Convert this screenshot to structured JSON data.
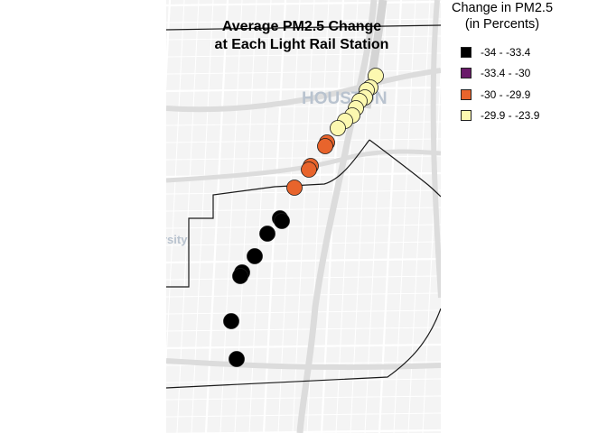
{
  "title_line1": "Average PM2.5 Change",
  "title_line2": "at Each Light Rail Station",
  "basemap": {
    "city_label": "HOUSTON",
    "partial_label": "rsity"
  },
  "legend": {
    "title_line1": "Change in PM2.5",
    "title_line2": "(in Percents)",
    "classes": [
      {
        "label": "-34 - -33.4",
        "color": "#000000"
      },
      {
        "label": "-33.4 - -30",
        "color": "#6a1b6a"
      },
      {
        "label": "-30 - -29.9",
        "color": "#e8642c"
      },
      {
        "label": "-29.9 - -23.9",
        "color": "#fcf8b0"
      }
    ]
  },
  "colors": {
    "map_background": "#f4f4f4",
    "street": "#ffffff",
    "highway": "#dcdcdc",
    "boundary": "#1a1a1a"
  }
}
